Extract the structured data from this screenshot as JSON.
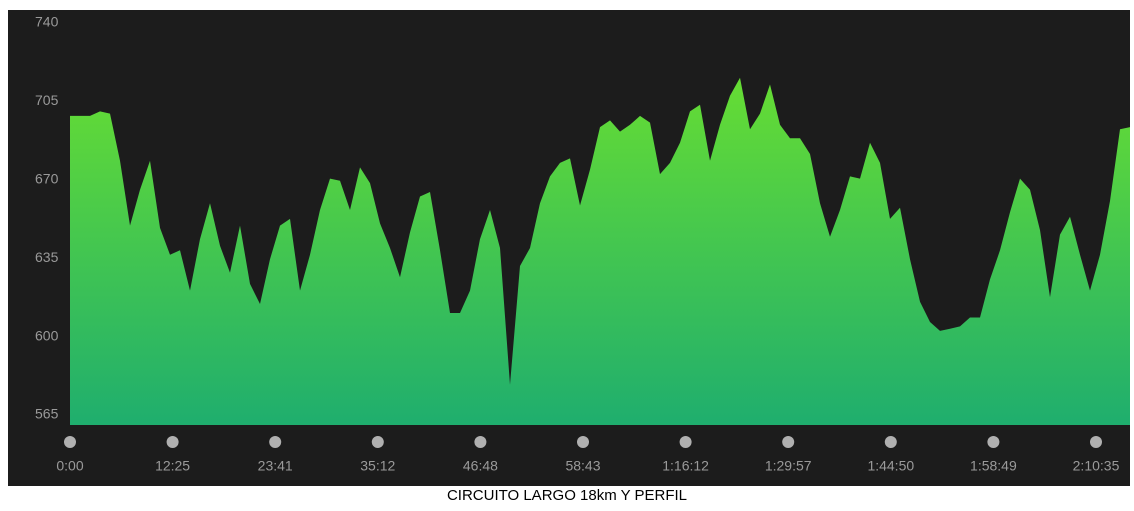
{
  "chart_data": {
    "type": "area",
    "caption": "CIRCUITO LARGO 18km Y PERFIL",
    "x_labels": [
      "0:00",
      "12:25",
      "23:41",
      "35:12",
      "46:48",
      "58:43",
      "1:16:12",
      "1:29:57",
      "1:44:50",
      "1:58:49",
      "2:10:35"
    ],
    "values": [
      703,
      703,
      703,
      705,
      704,
      683,
      654,
      670,
      683,
      653,
      641,
      643,
      625,
      648,
      664,
      645,
      633,
      654,
      628,
      619,
      639,
      654,
      657,
      625,
      641,
      661,
      675,
      674,
      661,
      680,
      673,
      655,
      644,
      631,
      651,
      667,
      669,
      643,
      615,
      615,
      625,
      648,
      661,
      644,
      583,
      636,
      644,
      664,
      676,
      682,
      684,
      663,
      679,
      698,
      701,
      696,
      699,
      703,
      700,
      677,
      682,
      691,
      705,
      708,
      683,
      699,
      712,
      720,
      697,
      704,
      717,
      699,
      693,
      693,
      686,
      664,
      649,
      661,
      676,
      675,
      691,
      682,
      657,
      662,
      639,
      620,
      611,
      607,
      608,
      609,
      613,
      613,
      630,
      643,
      660,
      675,
      670,
      652,
      622,
      650,
      658,
      641,
      625,
      641,
      665,
      697,
      698
    ],
    "colors": [
      "#66dd33",
      "#1fae6e"
    ],
    "ylim": [
      565,
      740
    ],
    "yticks": [
      565,
      600,
      635,
      670,
      705,
      740
    ]
  }
}
